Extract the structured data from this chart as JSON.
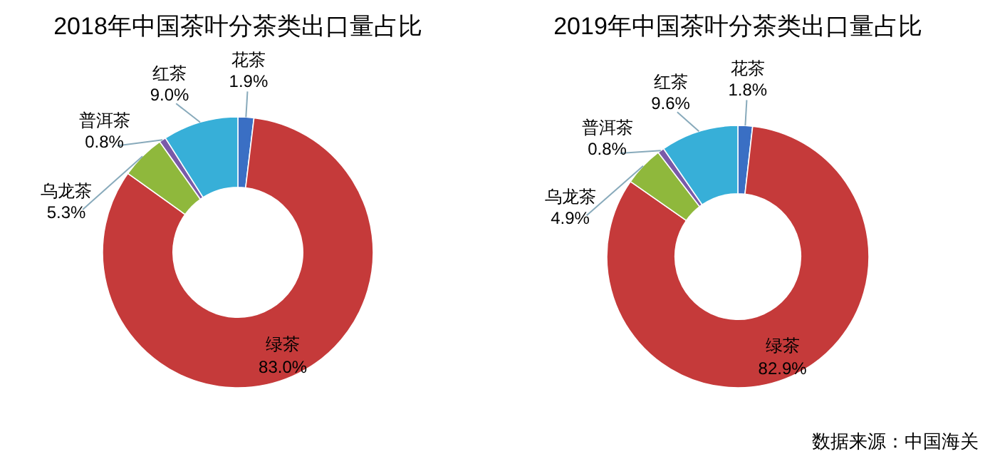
{
  "chart_data": [
    {
      "type": "donut",
      "title": "2018年中国茶叶分茶类出口量占比",
      "categories": [
        "花茶",
        "绿茶",
        "乌龙茶",
        "普洱茶",
        "红茶"
      ],
      "values": [
        1.9,
        83.0,
        5.3,
        0.8,
        9.0
      ],
      "value_labels": [
        "1.9%",
        "83.0%",
        "5.3%",
        "0.8%",
        "9.0%"
      ],
      "colors": [
        "#3a6fc4",
        "#c53a3a",
        "#8fb83c",
        "#7a5aa8",
        "#37afd8"
      ]
    },
    {
      "type": "donut",
      "title": "2019年中国茶叶分茶类出口量占比",
      "categories": [
        "花茶",
        "绿茶",
        "乌龙茶",
        "普洱茶",
        "红茶"
      ],
      "values": [
        1.8,
        82.9,
        4.9,
        0.8,
        9.6
      ],
      "value_labels": [
        "1.8%",
        "82.9%",
        "4.9%",
        "0.8%",
        "9.6%"
      ],
      "colors": [
        "#3a6fc4",
        "#c53a3a",
        "#8fb83c",
        "#7a5aa8",
        "#37afd8"
      ],
      "annotations": [
        "数据来源：中国海关"
      ]
    }
  ]
}
